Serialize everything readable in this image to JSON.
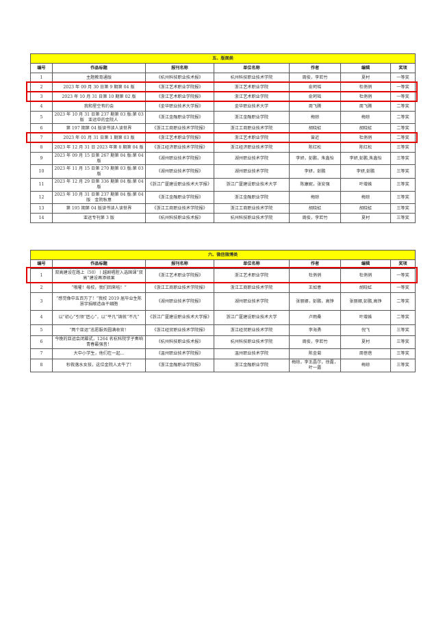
{
  "columns": [
    "编号",
    "作品标题",
    "报刊名称",
    "单位名称",
    "作者",
    "编辑",
    "奖项"
  ],
  "highlight_color": "#e00000",
  "header_color": "#ffff00",
  "sections": [
    {
      "title": "五、版面类",
      "rows": [
        [
          "1",
          "主题教育通版",
          "《杭州科技职业技术报》",
          "杭州科技职业技术学院",
          "周俊，李若竹",
          "夏村",
          "一等奖"
        ],
        [
          "2",
          "2023 年 09 月 30 日第 9 期第 04 版",
          "《浙江艺术职业学院报》",
          "浙江艺术职业学院",
          "俞珂瑶",
          "杜俏俏",
          "一等奖"
        ],
        [
          "3",
          "2023 年 10 月 31 日第 10 期第 02 版",
          "《浙江艺术职业学院报》",
          "浙江艺术职业学院",
          "俞珂瑶",
          "杜俏俏",
          "一等奖"
        ],
        [
          "4",
          "我和星空有约会",
          "《金华职业技术大学报》",
          "金华职业技术大学",
          "周飞腾",
          "周飞腾",
          "二等奖"
        ],
        [
          "5",
          "2023 年 10 月 31 日第 237 期第 03 版:第 03 版　亚运中的金院人",
          "《浙江金融职业学院报》",
          "浙江金融职业学院",
          "梅琼",
          "梅琼",
          "二等奖"
        ],
        [
          "6",
          "第 197 期第 04 版读书读人读世界",
          "《浙江工商职业技术学院报》",
          "浙江工商职业技术学院",
          "胡晓虹",
          "胡晓虹",
          "二等奖"
        ],
        [
          "7",
          "2023 年 01 月 31 日第 1 期第 03 版",
          "《浙江艺术职业学院报》",
          "浙江艺术职业学院",
          "曾近",
          "杜俏俏",
          "二等奖"
        ],
        [
          "8",
          "2023 年 12 月 31 日 2023 年第 8 期第 04 版",
          "《浙江经济职业技术学院报》",
          "浙江经济职业技术学院",
          "陈红松",
          "陈红松",
          "三等奖"
        ],
        [
          "9",
          "2023 年 09 月 15 日第 267 期第 04 版:第 04 版",
          "《湖州职业技术学院报》",
          "湖州职业技术学院",
          "李妍，彭鹏，朱鑫怡",
          "李妍,彭鹏,朱鑫怡",
          "三等奖"
        ],
        [
          "10",
          "2023 年 11 月 15 日第 270 期第 03 版:第 03 版",
          "《湖州职业技术学院报》",
          "湖州职业技术学院",
          "李妍，彭鹏",
          "李妍,彭鹏",
          "三等奖"
        ],
        [
          "11",
          "2023 年 12 月 29 日第 336 期第 04 版:第 04 版",
          "《浙江广厦建设职业技术大学报》",
          "浙江广厦建设职业技术大学",
          "陈康妮，张安强",
          "叶增姝",
          "三等奖"
        ],
        [
          "12",
          "2023 年 10 月 31 日第 237 期第 04 版:第 04 版　金院秋意",
          "《浙江金融职业学院报》",
          "浙江金融职业学院",
          "梅琼",
          "梅琼",
          "三等奖"
        ],
        [
          "13",
          "第 195 期第 04 版读书读人读世界",
          "《浙江工商职业技术学院报》",
          "浙江工商职业技术学院",
          "胡晓虹",
          "胡晓虹",
          "三等奖"
        ],
        [
          "14",
          "亚运专刊第 3 版",
          "《杭州科技职业技术报》",
          "杭州科技职业技术学院",
          "周俊，李若竹",
          "夏村",
          "三等奖"
        ]
      ]
    },
    {
      "title": "六、微信微博类",
      "rows": [
        [
          "1",
          "双高建设在路上（50）丨越剧唱腔入选国课“双高”建设再添硕果",
          "《浙江艺术职业学院报》",
          "浙江艺术职业学院",
          "杜俏俏",
          "杜俏俏",
          "一等奖"
        ],
        [
          "2",
          "“哦嚯！母校，我们回来啦！”",
          "《浙江工商职业技术学院报》",
          "浙江工商职业技术学院",
          "王如意",
          "胡晓虹",
          "一等奖"
        ],
        [
          "3",
          "“感觉像中五百万了！”我校 2019 届毕业生陈慧宇捐献造血干细胞",
          "《湖州职业技术学院报》",
          "湖州职业技术学院",
          "张丽娜，彭鹏，高铮",
          "张丽娜,彭鹏,高铮",
          "二等奖"
        ],
        [
          "4",
          "以“初心”引领“匠心”，以“平凡”铸就“不凡”",
          "《浙江广厦建设职业技术大学报》",
          "浙江广厦建设职业技术大学",
          "卢雨桑",
          "叶增姝",
          "二等奖"
        ],
        [
          "5",
          "“两个亚运”志愿服务圆满收官！",
          "《浙江经贸职业技术学院报》",
          "浙江经贸职业技术学院",
          "李海勇",
          "倪飞",
          "三等奖"
        ],
        [
          "6",
          "今晚的亚运会闭幕式，1264 名杭科院学子奏响青春最强音！",
          "《杭州科技职业技术报》",
          "杭州科技职业技术学院",
          "周俊，李若竹",
          "夏村",
          "三等奖"
        ],
        [
          "7",
          "大中小学生，他们在一起...",
          "《温州职业技术学院报》",
          "温州职业技术学院",
          "陈金菊",
          "周蓓蓓",
          "三等奖"
        ],
        [
          "8",
          "秒救落水女孩，这位金院人太牛了!",
          "《浙江金融职业学院报》",
          "浙江金融职业学院",
          "梅琼，李王晶尔，徐露，叶一露",
          "梅琼",
          "三等奖"
        ]
      ]
    }
  ]
}
